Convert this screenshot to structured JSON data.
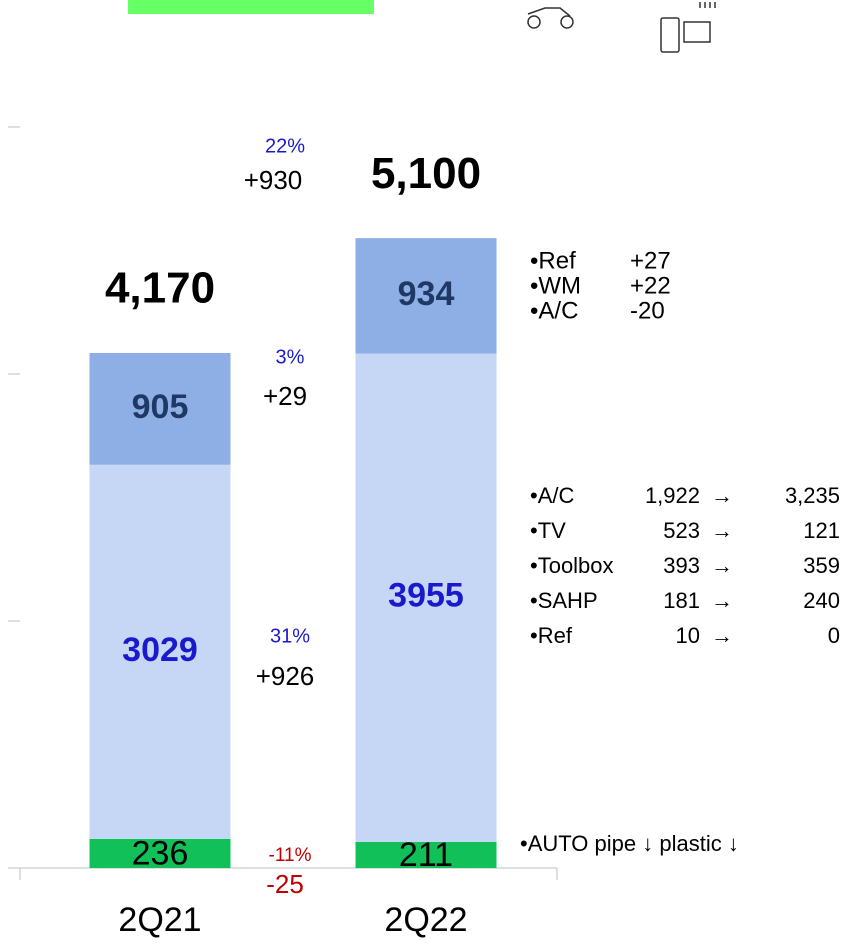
{
  "chart_data": {
    "type": "stacked-bar",
    "categories": [
      "2Q21",
      "2Q22"
    ],
    "series": [
      {
        "color": "#12c05a",
        "label_color": "#000000",
        "values": [
          236,
          211
        ]
      },
      {
        "color": "#c5d7f4",
        "label_color": "#1a1acc",
        "values": [
          3029,
          3955
        ]
      },
      {
        "color": "#8eaee6",
        "label_color": "#1f3864",
        "values": [
          905,
          934
        ]
      }
    ],
    "totals": {
      "values": [
        4170,
        5100
      ],
      "value_labels": [
        "4,170",
        "5,100"
      ]
    },
    "ylim": [
      0,
      6000
    ],
    "yticks": [
      0,
      2000,
      4000,
      6000
    ],
    "changes": [
      {
        "pct": "22%",
        "delta": "+930"
      },
      {
        "pct": "3%",
        "delta": "+29"
      },
      {
        "pct": "31%",
        "delta": "+926"
      },
      {
        "pct": "-11%",
        "delta": "-25"
      }
    ],
    "notes_top": [
      [
        "•Ref",
        "+27"
      ],
      [
        "•WM",
        "+22"
      ],
      [
        "•A/C",
        "-20"
      ]
    ],
    "notes_mid": [
      [
        "•A/C",
        "1,922",
        "3,235"
      ],
      [
        "•TV",
        "523",
        "121"
      ],
      [
        "•Toolbox",
        "393",
        "359"
      ],
      [
        "•SAHP",
        "181",
        "240"
      ],
      [
        "•Ref",
        "10",
        "0"
      ]
    ],
    "arrow": "→",
    "note_bottom": "•AUTO pipe ↓ plastic ↓"
  }
}
